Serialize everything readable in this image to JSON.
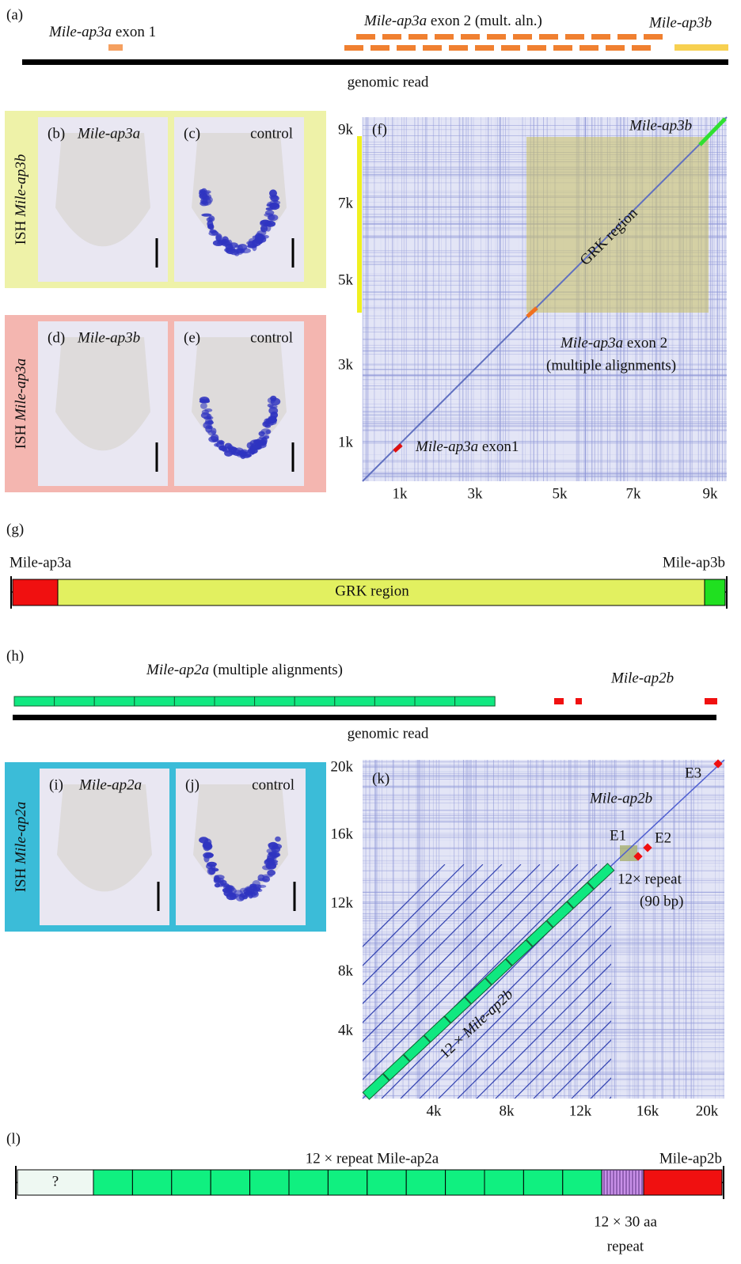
{
  "a": {
    "label": "(a)",
    "exon1": {
      "gene": "Mile-ap3a",
      "text": " exon 1"
    },
    "exon2": {
      "gene": "Mile-ap3a",
      "text": " exon 2 (mult. aln.)"
    },
    "ap3b": "Mile-ap3b",
    "read": "genomic read"
  },
  "b": {
    "label": "(b)",
    "title": "Mile-ap3a"
  },
  "c": {
    "label": "(c)",
    "title": "control"
  },
  "ish1": {
    "prefix": "ISH ",
    "gene": "Mile-ap3b"
  },
  "d": {
    "label": "(d)",
    "title": "Mile-ap3b"
  },
  "e": {
    "label": "(e)",
    "title": "control"
  },
  "ish2": {
    "prefix": "ISH ",
    "gene": "Mile-ap3a"
  },
  "f": {
    "label": "(f)",
    "yticks": [
      "9k",
      "7k",
      "5k",
      "3k",
      "1k"
    ],
    "xticks": [
      "1k",
      "3k",
      "5k",
      "7k",
      "9k"
    ],
    "ap3b": "Mile-ap3b",
    "grk": "GRK region",
    "exon2": {
      "gene": "Mile-ap3a",
      "text": " exon 2"
    },
    "multi": "(multiple alignments)",
    "exon1": {
      "gene": "Mile-ap3a",
      "text": " exon1"
    }
  },
  "g": {
    "label": "(g)",
    "left": "Mile-ap3a",
    "right": "Mile-ap3b",
    "grk": "GRK region"
  },
  "h": {
    "label": "(h)",
    "ap2a": {
      "gene": "Mile-ap2a",
      "text": " (multiple alignments)"
    },
    "ap2b": "Mile-ap2b",
    "read": "genomic read"
  },
  "i": {
    "label": "(i)",
    "title": "Mile-ap2a"
  },
  "j": {
    "label": "(j)",
    "title": "control"
  },
  "ish3": {
    "prefix": "ISH ",
    "gene": "Mile-ap2a"
  },
  "k": {
    "label": "(k)",
    "yticks": [
      "20k",
      "16k",
      "12k",
      "8k",
      "4k"
    ],
    "xticks": [
      "4k",
      "8k",
      "12k",
      "16k",
      "20k"
    ],
    "e3": "E3",
    "ap2b": "Mile-ap2b",
    "e1": "E1",
    "e2": "E2",
    "repeat": "12× repeat",
    "bp": "(90 bp)",
    "diag": {
      "prefix": "12 × ",
      "gene": "Mile-ap2b"
    }
  },
  "l": {
    "label": "(l)",
    "top": "12 × repeat Mile-ap2a",
    "right": "Mile-ap2b",
    "q": "?",
    "aa": "12 × 30 aa",
    "rep": "repeat"
  }
}
